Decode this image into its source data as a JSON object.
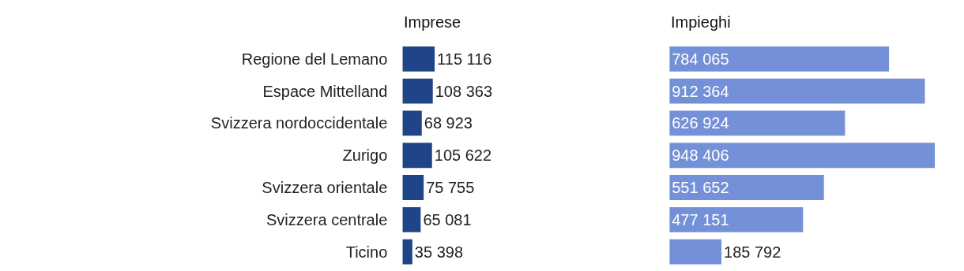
{
  "chart_data": [
    {
      "type": "bar",
      "orientation": "horizontal",
      "title": "Imprese",
      "categories": [
        "Regione del Lemano",
        "Espace Mittelland",
        "Svizzera nordoccidentale",
        "Zurigo",
        "Svizzera orientale",
        "Svizzera centrale",
        "Ticino"
      ],
      "values": [
        115116,
        108363,
        68923,
        105622,
        75755,
        65081,
        35398
      ],
      "value_labels": [
        "115 116",
        "108 363",
        "68 923",
        "105 622",
        "75 755",
        "65 081",
        "35 398"
      ],
      "color": "#1f4488",
      "tick_labels": "y"
    },
    {
      "type": "bar",
      "orientation": "horizontal",
      "title": "Impieghi",
      "categories": [
        "Regione del Lemano",
        "Espace Mittelland",
        "Svizzera nordoccidentale",
        "Zurigo",
        "Svizzera orientale",
        "Svizzera centrale",
        "Ticino"
      ],
      "values": [
        784065,
        912364,
        626924,
        948406,
        551652,
        477151,
        185792
      ],
      "value_labels": [
        "784 065",
        "912 364",
        "626 924",
        "948 406",
        "551 652",
        "477 151",
        "185 792"
      ],
      "color": "#7490d8",
      "tick_labels": false
    }
  ]
}
